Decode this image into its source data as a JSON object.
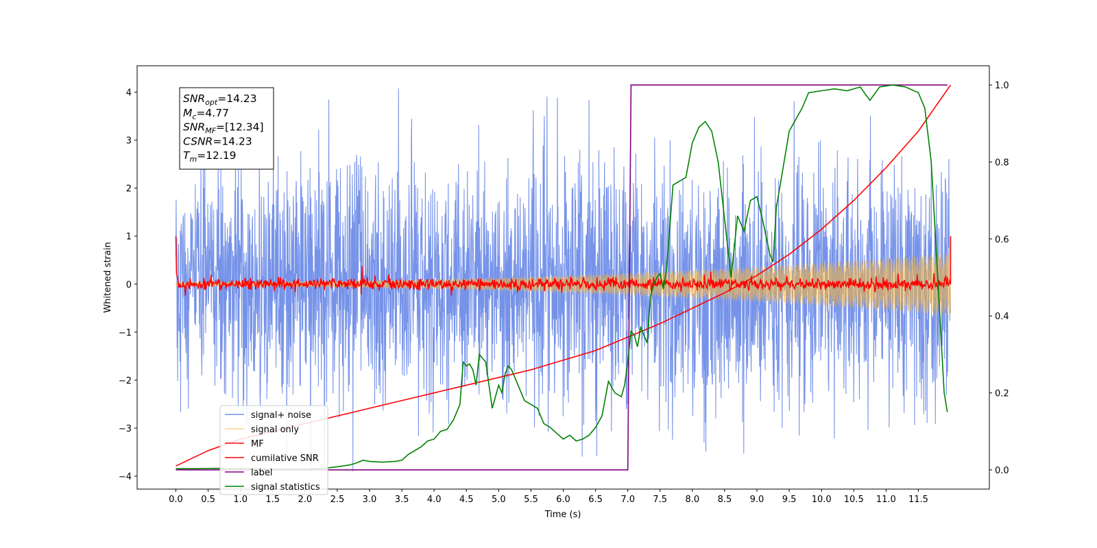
{
  "chart_data": {
    "type": "line",
    "xlabel": "Time (s)",
    "ylabel": "Whitened strain",
    "xlim": [
      -0.6,
      12.6
    ],
    "ylim_left": [
      -4.27,
      4.55
    ],
    "ylim_right": [
      -0.05,
      1.05
    ],
    "x_ticks": [
      0.0,
      0.5,
      1.0,
      1.5,
      2.0,
      2.5,
      3.0,
      3.5,
      4.0,
      4.5,
      5.0,
      5.5,
      6.0,
      6.5,
      7.0,
      7.5,
      8.0,
      8.5,
      9.0,
      9.5,
      10.0,
      10.5,
      11.0,
      11.5
    ],
    "x_tick_labels": [
      "0.0",
      "0.5",
      "1.0",
      "1.5",
      "2.0",
      "2.5",
      "3.0",
      "3.5",
      "4.0",
      "4.5",
      "5.0",
      "5.5",
      "6.0",
      "6.5",
      "7.0",
      "7.5",
      "8.0",
      "8.5",
      "9.0",
      "9.5",
      "10.0",
      "10.5",
      "11.0",
      "11.5"
    ],
    "y_left_ticks": [
      4,
      3,
      2,
      1,
      0,
      -1,
      -2,
      -3,
      -4
    ],
    "y_left_tick_labels": [
      "4",
      "3",
      "2",
      "1",
      "0",
      "−1",
      "−2",
      "−3",
      "−4"
    ],
    "y_right_ticks": [
      1.0,
      0.8,
      0.6,
      0.4,
      0.2,
      0.0
    ],
    "y_right_tick_labels": [
      "1.0",
      "0.8",
      "0.6",
      "0.4",
      "0.2",
      "0.0"
    ],
    "grid": false,
    "legend_placement": "lower-left",
    "series": [
      {
        "name": "signal+ noise",
        "axis": "left",
        "color": "#6f8de8",
        "kind": "noise",
        "x_range": [
          0.0,
          12.0
        ],
        "envelope": 1.3
      },
      {
        "name": "signal only",
        "axis": "left",
        "color": "#ffb733",
        "kind": "chirp",
        "x_range": [
          0.0,
          12.0
        ],
        "amplitude_start": 0.05,
        "amplitude_end": 0.65
      },
      {
        "name": "MF",
        "axis": "left",
        "color": "#ff0000",
        "kind": "mf",
        "x_range": [
          0.0,
          12.0
        ],
        "start_value": 1.0,
        "end_value": 1.0
      },
      {
        "name": "cumilative SNR",
        "axis": "right",
        "color": "#ff0000",
        "points": [
          [
            0.0,
            0.01
          ],
          [
            0.5,
            0.05
          ],
          [
            1.0,
            0.08
          ],
          [
            1.5,
            0.1
          ],
          [
            2.0,
            0.12
          ],
          [
            2.5,
            0.14
          ],
          [
            3.0,
            0.16
          ],
          [
            3.5,
            0.18
          ],
          [
            4.0,
            0.2
          ],
          [
            4.5,
            0.22
          ],
          [
            5.0,
            0.24
          ],
          [
            5.5,
            0.26
          ],
          [
            6.0,
            0.285
          ],
          [
            6.5,
            0.31
          ],
          [
            7.0,
            0.345
          ],
          [
            7.5,
            0.38
          ],
          [
            8.0,
            0.42
          ],
          [
            8.5,
            0.46
          ],
          [
            9.0,
            0.505
          ],
          [
            9.5,
            0.56
          ],
          [
            10.0,
            0.625
          ],
          [
            10.5,
            0.7
          ],
          [
            11.0,
            0.785
          ],
          [
            11.5,
            0.88
          ],
          [
            12.0,
            1.0
          ]
        ]
      },
      {
        "name": "label",
        "axis": "right",
        "color": "#800080",
        "points": [
          [
            0.0,
            0.0
          ],
          [
            7.0,
            0.0
          ],
          [
            7.05,
            1.0
          ],
          [
            11.95,
            1.0
          ]
        ]
      },
      {
        "name": "signal statistics",
        "axis": "right",
        "color": "#008000",
        "points": [
          [
            0.0,
            0.003
          ],
          [
            0.3,
            0.003
          ],
          [
            0.6,
            0.004
          ],
          [
            1.0,
            0.003
          ],
          [
            1.5,
            0.002
          ],
          [
            2.0,
            0.002
          ],
          [
            2.3,
            0.004
          ],
          [
            2.5,
            0.008
          ],
          [
            2.7,
            0.013
          ],
          [
            2.8,
            0.018
          ],
          [
            2.9,
            0.025
          ],
          [
            3.0,
            0.022
          ],
          [
            3.2,
            0.02
          ],
          [
            3.4,
            0.022
          ],
          [
            3.5,
            0.025
          ],
          [
            3.6,
            0.04
          ],
          [
            3.8,
            0.06
          ],
          [
            3.9,
            0.075
          ],
          [
            4.0,
            0.08
          ],
          [
            4.1,
            0.1
          ],
          [
            4.2,
            0.105
          ],
          [
            4.3,
            0.13
          ],
          [
            4.4,
            0.17
          ],
          [
            4.45,
            0.28
          ],
          [
            4.5,
            0.27
          ],
          [
            4.55,
            0.275
          ],
          [
            4.6,
            0.26
          ],
          [
            4.65,
            0.22
          ],
          [
            4.7,
            0.3
          ],
          [
            4.8,
            0.28
          ],
          [
            4.9,
            0.16
          ],
          [
            5.0,
            0.22
          ],
          [
            5.05,
            0.2
          ],
          [
            5.1,
            0.25
          ],
          [
            5.15,
            0.27
          ],
          [
            5.2,
            0.26
          ],
          [
            5.3,
            0.22
          ],
          [
            5.4,
            0.18
          ],
          [
            5.5,
            0.17
          ],
          [
            5.6,
            0.16
          ],
          [
            5.7,
            0.12
          ],
          [
            5.8,
            0.11
          ],
          [
            5.9,
            0.095
          ],
          [
            6.0,
            0.08
          ],
          [
            6.1,
            0.09
          ],
          [
            6.2,
            0.075
          ],
          [
            6.3,
            0.08
          ],
          [
            6.4,
            0.09
          ],
          [
            6.5,
            0.11
          ],
          [
            6.6,
            0.14
          ],
          [
            6.7,
            0.23
          ],
          [
            6.8,
            0.2
          ],
          [
            6.9,
            0.19
          ],
          [
            6.95,
            0.22
          ],
          [
            7.0,
            0.28
          ],
          [
            7.05,
            0.36
          ],
          [
            7.1,
            0.35
          ],
          [
            7.15,
            0.32
          ],
          [
            7.2,
            0.37
          ],
          [
            7.3,
            0.33
          ],
          [
            7.35,
            0.45
          ],
          [
            7.4,
            0.48
          ],
          [
            7.45,
            0.5
          ],
          [
            7.5,
            0.51
          ],
          [
            7.55,
            0.47
          ],
          [
            7.6,
            0.52
          ],
          [
            7.7,
            0.74
          ],
          [
            7.8,
            0.75
          ],
          [
            7.9,
            0.76
          ],
          [
            8.0,
            0.85
          ],
          [
            8.1,
            0.89
          ],
          [
            8.2,
            0.905
          ],
          [
            8.3,
            0.88
          ],
          [
            8.4,
            0.8
          ],
          [
            8.5,
            0.65
          ],
          [
            8.6,
            0.5
          ],
          [
            8.65,
            0.58
          ],
          [
            8.7,
            0.66
          ],
          [
            8.8,
            0.62
          ],
          [
            8.9,
            0.7
          ],
          [
            9.0,
            0.71
          ],
          [
            9.1,
            0.64
          ],
          [
            9.2,
            0.56
          ],
          [
            9.25,
            0.54
          ],
          [
            9.3,
            0.68
          ],
          [
            9.5,
            0.88
          ],
          [
            9.7,
            0.94
          ],
          [
            9.8,
            0.98
          ],
          [
            10.0,
            0.985
          ],
          [
            10.2,
            0.99
          ],
          [
            10.4,
            0.985
          ],
          [
            10.6,
            0.995
          ],
          [
            10.75,
            0.96
          ],
          [
            10.9,
            0.995
          ],
          [
            11.1,
            1.0
          ],
          [
            11.3,
            0.995
          ],
          [
            11.5,
            0.98
          ],
          [
            11.6,
            0.94
          ],
          [
            11.7,
            0.8
          ],
          [
            11.8,
            0.5
          ],
          [
            11.9,
            0.2
          ],
          [
            11.95,
            0.15
          ]
        ]
      }
    ],
    "annotation_box": [
      {
        "base": "SNR",
        "sub": "opt",
        "value": "=14.23"
      },
      {
        "base": "M",
        "sub": "c",
        "value": "=4.77"
      },
      {
        "base": "SNR",
        "sub": "MF",
        "value": "=[12.34]"
      },
      {
        "base": "CSNR",
        "sub": "",
        "value": "=14.23"
      },
      {
        "base": "T",
        "sub": "m",
        "value": "=12.19"
      }
    ]
  }
}
